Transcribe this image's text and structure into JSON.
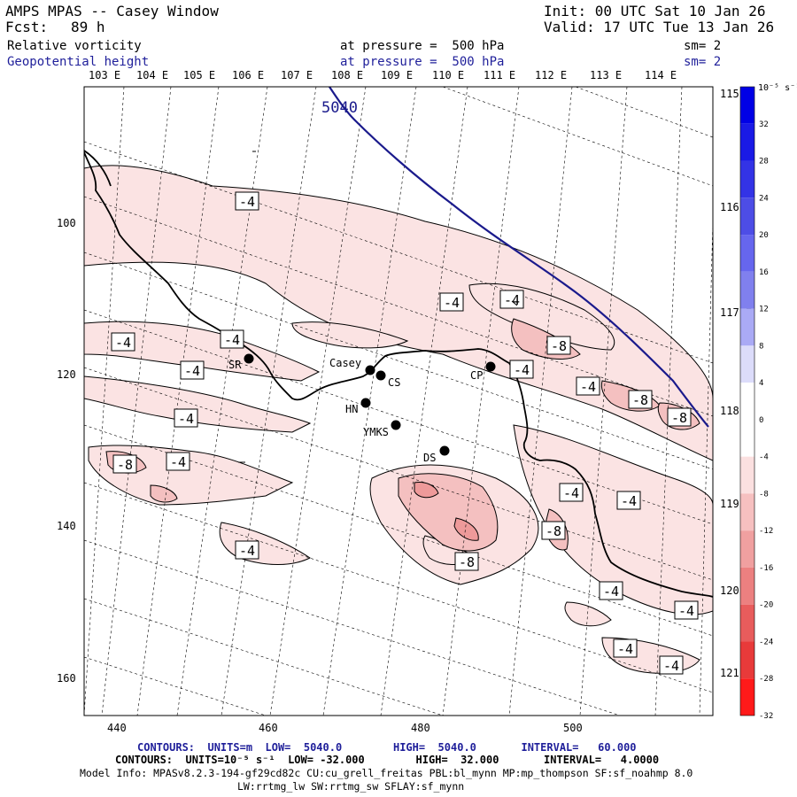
{
  "header": {
    "title": "AMPS MPAS -- Casey Window",
    "fcst_label": "Fcst:",
    "fcst_value": "89 h",
    "init": "Init: 00 UTC Sat 10 Jan 26",
    "valid": "Valid: 17 UTC Tue 13 Jan 26",
    "field1_name": "Relative vorticity",
    "field1_level": "at pressure =  500 hPa",
    "field1_sm": "sm= 2",
    "field2_name": "Geopotential height",
    "field2_level": "at pressure =  500 hPa",
    "field2_sm": "sm= 2"
  },
  "lon_labels_top": [
    "103 E",
    "104 E",
    "105 E",
    "106 E",
    "107 E",
    "108 E",
    "109 E",
    "110 E",
    "111 E",
    "112 E",
    "113 E",
    "114 E"
  ],
  "lon_labels_right": [
    "115 E",
    "116 E",
    "117 E",
    "118 E",
    "119 E",
    "120 E",
    "121 E"
  ],
  "x_ticks": [
    "440",
    "460",
    "480",
    "500"
  ],
  "y_ticks": [
    "100",
    "120",
    "140",
    "160"
  ],
  "stations": [
    {
      "id": "SR",
      "label": "SR"
    },
    {
      "id": "Casey",
      "label": "Casey"
    },
    {
      "id": "CS",
      "label": "CS"
    },
    {
      "id": "HN",
      "label": "HN"
    },
    {
      "id": "YMKS",
      "label": "YMKS"
    },
    {
      "id": "CP",
      "label": "CP"
    },
    {
      "id": "DS",
      "label": "DS"
    }
  ],
  "height_contour_label": "5040",
  "vorticity_labels": [
    "-4",
    "-4",
    "-4",
    "-4",
    "-4",
    "-4",
    "-4",
    "-4",
    "-4",
    "-4",
    "-4",
    "-4",
    "-4",
    "-4",
    "-4",
    "-4",
    "-4",
    "-8",
    "-8",
    "-8",
    "-8",
    "-8",
    "-8"
  ],
  "colorbar": {
    "unit_label": "10⁻⁵ s⁻¹",
    "ticks": [
      "32",
      "28",
      "24",
      "20",
      "16",
      "12",
      "8",
      "4",
      "0",
      "-4",
      "-8",
      "-12",
      "-16",
      "-20",
      "-24",
      "-28",
      "-32"
    ],
    "colors": [
      "#0000e6",
      "#1a1ae6",
      "#3333e6",
      "#4d4de6",
      "#6666ee",
      "#8080ee",
      "#aaaaf5",
      "#dcdcfa",
      "#ffffff",
      "#ffffff",
      "#fbe0e0",
      "#f6c0c0",
      "#f0a0a0",
      "#ec8080",
      "#e85c5c",
      "#e83a3a",
      "#ff1a1a"
    ]
  },
  "footer": {
    "line1": "CONTOURS:  UNITS=m  LOW=  5040.0        HIGH=  5040.0       INTERVAL=   60.000",
    "line2": "CONTOURS:  UNITS=10⁻⁵ s⁻¹  LOW= -32.000        HIGH=  32.000       INTERVAL=   4.0000",
    "line3": "Model Info: MPASv8.2.3-194-gf29cd82c CU:cu_grell_freitas PBL:bl_mynn MP:mp_thompson SF:sf_noahmp 8.0",
    "line4": "LW:rrtmg_lw SW:rrtmg_sw SFLAY:sf_mynn"
  },
  "colors": {
    "height_contour": "#1a1a8c",
    "vort_fill_light": "#fbe3e3",
    "vort_fill_mid": "#f4c0c0",
    "vort_fill_strong": "#ee9a9a",
    "coastline": "#000000"
  }
}
